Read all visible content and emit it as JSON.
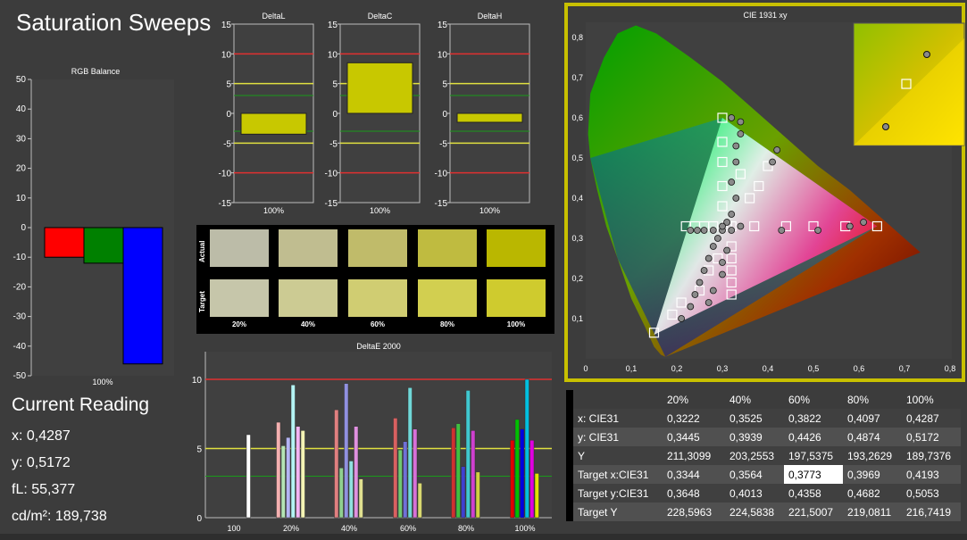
{
  "title": "Saturation Sweeps",
  "rgb_balance": {
    "title": "RGB Balance",
    "xlabel": "100%",
    "ylim": [
      -50,
      50
    ],
    "ticks": [
      50,
      40,
      30,
      20,
      10,
      0,
      -10,
      -20,
      -30,
      -40,
      -50
    ],
    "bars": [
      {
        "name": "R",
        "value": -10,
        "color": "#ff0000"
      },
      {
        "name": "G",
        "value": -12,
        "color": "#008000"
      },
      {
        "name": "B",
        "value": -46,
        "color": "#0000ff"
      }
    ]
  },
  "delta_charts": [
    {
      "title": "DeltaL",
      "xlabel": "100%",
      "value": -3.5
    },
    {
      "title": "DeltaC",
      "xlabel": "100%",
      "value": 8.5
    },
    {
      "title": "DeltaH",
      "xlabel": "100%",
      "value": -1.5
    }
  ],
  "delta_ticks": [
    15,
    10,
    5,
    0,
    -5,
    -10,
    -15
  ],
  "patches": {
    "actual_label": "Actual",
    "target_label": "Target",
    "labels": [
      "20%",
      "40%",
      "60%",
      "80%",
      "100%"
    ],
    "actual": [
      "#bcbca8",
      "#c0bd90",
      "#c0bb6a",
      "#bfbb40",
      "#bab700"
    ],
    "target": [
      "#c6c6aa",
      "#cccb93",
      "#d0cd72",
      "#d2cf50",
      "#cfcb2e"
    ]
  },
  "deltae": {
    "title": "DeltaE 2000",
    "categories": [
      "100",
      "20%",
      "40%",
      "60%",
      "80%",
      "100%"
    ],
    "ticks": [
      10,
      5,
      0
    ],
    "ylim": [
      0,
      12
    ],
    "groups": [
      {
        "values": [
          6.0
        ],
        "colors": [
          "#ffffff"
        ]
      },
      {
        "values": [
          6.9,
          5.2,
          5.8,
          9.6,
          6.6,
          6.3
        ],
        "colors": [
          "#f4b0b0",
          "#b4e4b4",
          "#b4b4f4",
          "#b4f4f4",
          "#f4b4f4",
          "#f4f4b4"
        ]
      },
      {
        "values": [
          7.8,
          3.6,
          9.7,
          4.1,
          6.6,
          2.8
        ],
        "colors": [
          "#e08080",
          "#90d090",
          "#9090e0",
          "#90e0e0",
          "#e090e0",
          "#e0e090"
        ]
      },
      {
        "values": [
          7.2,
          4.9,
          5.5,
          9.4,
          6.4,
          2.5
        ],
        "colors": [
          "#d86060",
          "#70c870",
          "#7070d8",
          "#70d8d8",
          "#d870d8",
          "#d8d870"
        ]
      },
      {
        "values": [
          6.5,
          6.8,
          3.7,
          9.2,
          6.3,
          3.3
        ],
        "colors": [
          "#d03030",
          "#40c040",
          "#4040d0",
          "#40c8d0",
          "#d040d0",
          "#d0d040"
        ]
      },
      {
        "values": [
          5.6,
          7.1,
          6.4,
          10.0,
          5.6,
          3.2
        ],
        "colors": [
          "#e00000",
          "#00c000",
          "#0000e0",
          "#00c0e0",
          "#e000e0",
          "#e0e000"
        ]
      }
    ]
  },
  "cie": {
    "title": "CIE 1931 xy",
    "xticks": [
      "0",
      "0,1",
      "0,2",
      "0,3",
      "0,4",
      "0,5",
      "0,6",
      "0,7",
      "0,8"
    ],
    "yticks": [
      "0,1",
      "0,2",
      "0,3",
      "0,4",
      "0,5",
      "0,6",
      "0,7",
      "0,8"
    ]
  },
  "current_reading": {
    "title": "Current Reading",
    "lines": [
      "x: 0,4287",
      "y: 0,5172",
      "fL: 55,377",
      "cd/m²: 189,738"
    ]
  },
  "table": {
    "headers": [
      "",
      "20%",
      "40%",
      "60%",
      "80%",
      "100%"
    ],
    "rows": [
      [
        "x: CIE31",
        "0,3222",
        "0,3525",
        "0,3822",
        "0,4097",
        "0,4287"
      ],
      [
        "y: CIE31",
        "0,3445",
        "0,3939",
        "0,4426",
        "0,4874",
        "0,5172"
      ],
      [
        "Y",
        "211,3099",
        "203,2553",
        "197,5375",
        "193,2629",
        "189,7376"
      ],
      [
        "Target x:CIE31",
        "0,3344",
        "0,3564",
        "0,3773",
        "0,3969",
        "0,4193"
      ],
      [
        "Target y:CIE31",
        "0,3648",
        "0,4013",
        "0,4358",
        "0,4682",
        "0,5053"
      ],
      [
        "Target Y",
        "228,5963",
        "224,5838",
        "221,5007",
        "219,0811",
        "216,7419"
      ]
    ]
  },
  "chart_data": [
    {
      "type": "bar",
      "title": "RGB Balance",
      "categories": [
        "100%"
      ],
      "series": [
        {
          "name": "R",
          "values": [
            -10
          ]
        },
        {
          "name": "G",
          "values": [
            -12
          ]
        },
        {
          "name": "B",
          "values": [
            -46
          ]
        }
      ],
      "ylim": [
        -50,
        50
      ]
    },
    {
      "type": "bar",
      "title": "DeltaL",
      "categories": [
        "100%"
      ],
      "values": [
        -3.5
      ],
      "ylim": [
        -15,
        15
      ]
    },
    {
      "type": "bar",
      "title": "DeltaC",
      "categories": [
        "100%"
      ],
      "values": [
        8.5
      ],
      "ylim": [
        -15,
        15
      ]
    },
    {
      "type": "bar",
      "title": "DeltaH",
      "categories": [
        "100%"
      ],
      "values": [
        -1.5
      ],
      "ylim": [
        -15,
        15
      ]
    },
    {
      "type": "bar",
      "title": "DeltaE 2000",
      "categories": [
        "100",
        "20%",
        "40%",
        "60%",
        "80%",
        "100%"
      ],
      "ylim": [
        0,
        12
      ]
    },
    {
      "type": "scatter",
      "title": "CIE 1931 xy",
      "xlim": [
        0,
        0.8
      ],
      "ylim": [
        0,
        0.85
      ]
    }
  ]
}
